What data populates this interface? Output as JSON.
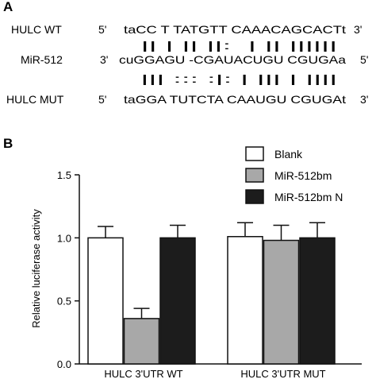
{
  "panel_a": {
    "label": "A",
    "rows": [
      {
        "name": "HULC WT",
        "prime5": "5'",
        "seq": "taCC T TATGTT CAAACAGCACTt",
        "prime3": "3'"
      },
      {
        "name": "MiR-512",
        "prime5": "3'",
        "seq": "cuGGAGU -CGAUACUGU CGUGAa",
        "prime3": "5'"
      },
      {
        "name": "HULC MUT",
        "prime5": "5'",
        "seq": "taGGA TUTCTA CAAUGU CGUGAt",
        "prime3": "3'"
      }
    ],
    "pairing_top": "  || | || ||:  | || |||||| ",
    "pairing_bottom": "  ||| ::: :|: | ||| | |||| "
  },
  "panel_b": {
    "label": "B"
  },
  "chart_data": {
    "type": "bar",
    "categories": [
      "HULC 3'UTR WT",
      "HULC 3'UTR MUT"
    ],
    "series": [
      {
        "name": "Blank",
        "values": [
          1.0,
          1.01
        ],
        "errors": [
          0.09,
          0.11
        ],
        "color": "#ffffff"
      },
      {
        "name": "MiR-512bm",
        "values": [
          0.36,
          0.98
        ],
        "errors": [
          0.08,
          0.12
        ],
        "color": "#a8a8a8"
      },
      {
        "name": "MiR-512bm N",
        "values": [
          1.0,
          1.0
        ],
        "errors": [
          0.1,
          0.12
        ],
        "color": "#1c1c1c"
      }
    ],
    "xlabel": "",
    "ylabel": "Relative luciferase activity",
    "ylim": [
      0,
      1.5
    ],
    "yticks": [
      "0.0",
      "0.5",
      "1.0",
      "1.5"
    ],
    "legend_position": "top-right",
    "grid": false
  }
}
